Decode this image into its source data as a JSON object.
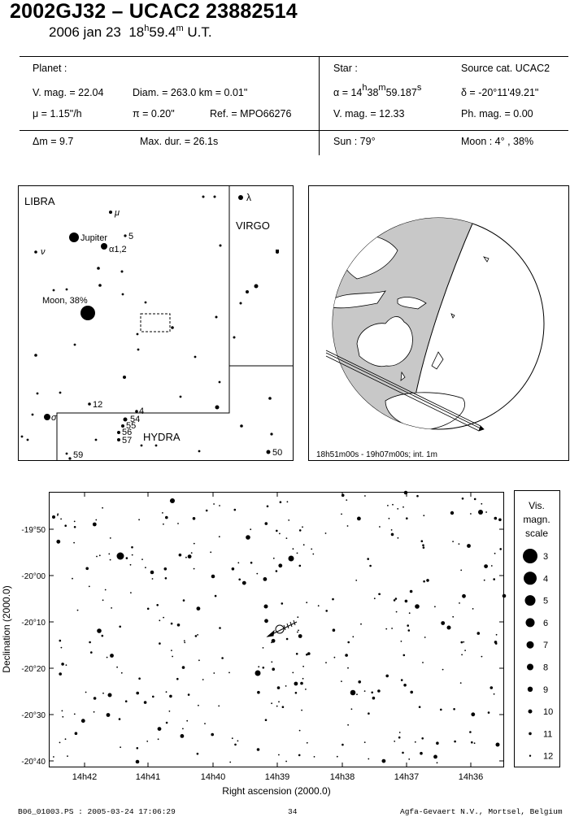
{
  "header": {
    "title": "2002GJ32  –  UCAC2 23882514",
    "date": "2006 jan 23",
    "time_h": "18",
    "time_m": "59.4",
    "time_unit": "U.T."
  },
  "planet": {
    "heading": "Planet :",
    "vmag": "V. mag. = 22.04",
    "diam": "Diam. = 263.0 km = 0.01\"",
    "mu": "μ =  1.15\"/h",
    "pi": "π =  0.20\"",
    "ref": "Ref. = MPO66276"
  },
  "star": {
    "heading": "Star :",
    "source": "Source cat.  UCAC2",
    "ra_prefix": "α = 14",
    "ra_h": "h",
    "ra_m_val": "38",
    "ra_m": "m",
    "ra_s_val": "59.187",
    "ra_s": "s",
    "dec": "δ = -20°11'49.21\"",
    "vmag": "V. mag. = 12.33",
    "phmag": "Ph. mag. =  0.00"
  },
  "summary": {
    "dm": "Δm = 9.7",
    "maxdur": "Max. dur. = 26.1s",
    "sun": "Sun :  79°",
    "moon": "Moon :   4° , 38%"
  },
  "skymap": {
    "labels": {
      "libra": "LIBRA",
      "virgo": "VIRGO",
      "hydra": "HYDRA",
      "jupiter": "Jupiter",
      "moon": "Moon, 38%",
      "mu": "μ",
      "five": "5",
      "alpha12": "α1,2",
      "nu": "ν",
      "lambda": "λ",
      "twelve": "12",
      "four": "4",
      "fiftyfour": "54",
      "fiftyfive": "55",
      "fiftysix": "56",
      "fiftyseven": "57",
      "fiftynine": "59",
      "fifty": "50",
      "sigma": "σ"
    }
  },
  "globe": {
    "caption": "18h51m00s - 19h07m00s; int.  1m"
  },
  "chart_data": {
    "type": "scatter",
    "xlabel": "Right ascension (2000.0)",
    "ylabel": "Declination (2000.0)",
    "x_ticks": [
      "14h42",
      "14h41",
      "14h40",
      "14h39",
      "14h38",
      "14h37",
      "14h36"
    ],
    "y_ticks": [
      "-19°50",
      "-20°00",
      "-20°10",
      "-20°20",
      "-20°30",
      "-20°40"
    ],
    "legend": {
      "title_lines": [
        "Vis.",
        "magn.",
        "scale"
      ],
      "placement": "right",
      "magnitudes": [
        "3",
        "4",
        "5",
        "6",
        "7",
        "8",
        "9",
        "10",
        "11",
        "12"
      ]
    }
  },
  "footer": {
    "file": "B06_01003.PS : 2005-03-24 17:06:29",
    "page": "34",
    "org": "Agfa-Gevaert N.V., Mortsel, Belgium"
  }
}
